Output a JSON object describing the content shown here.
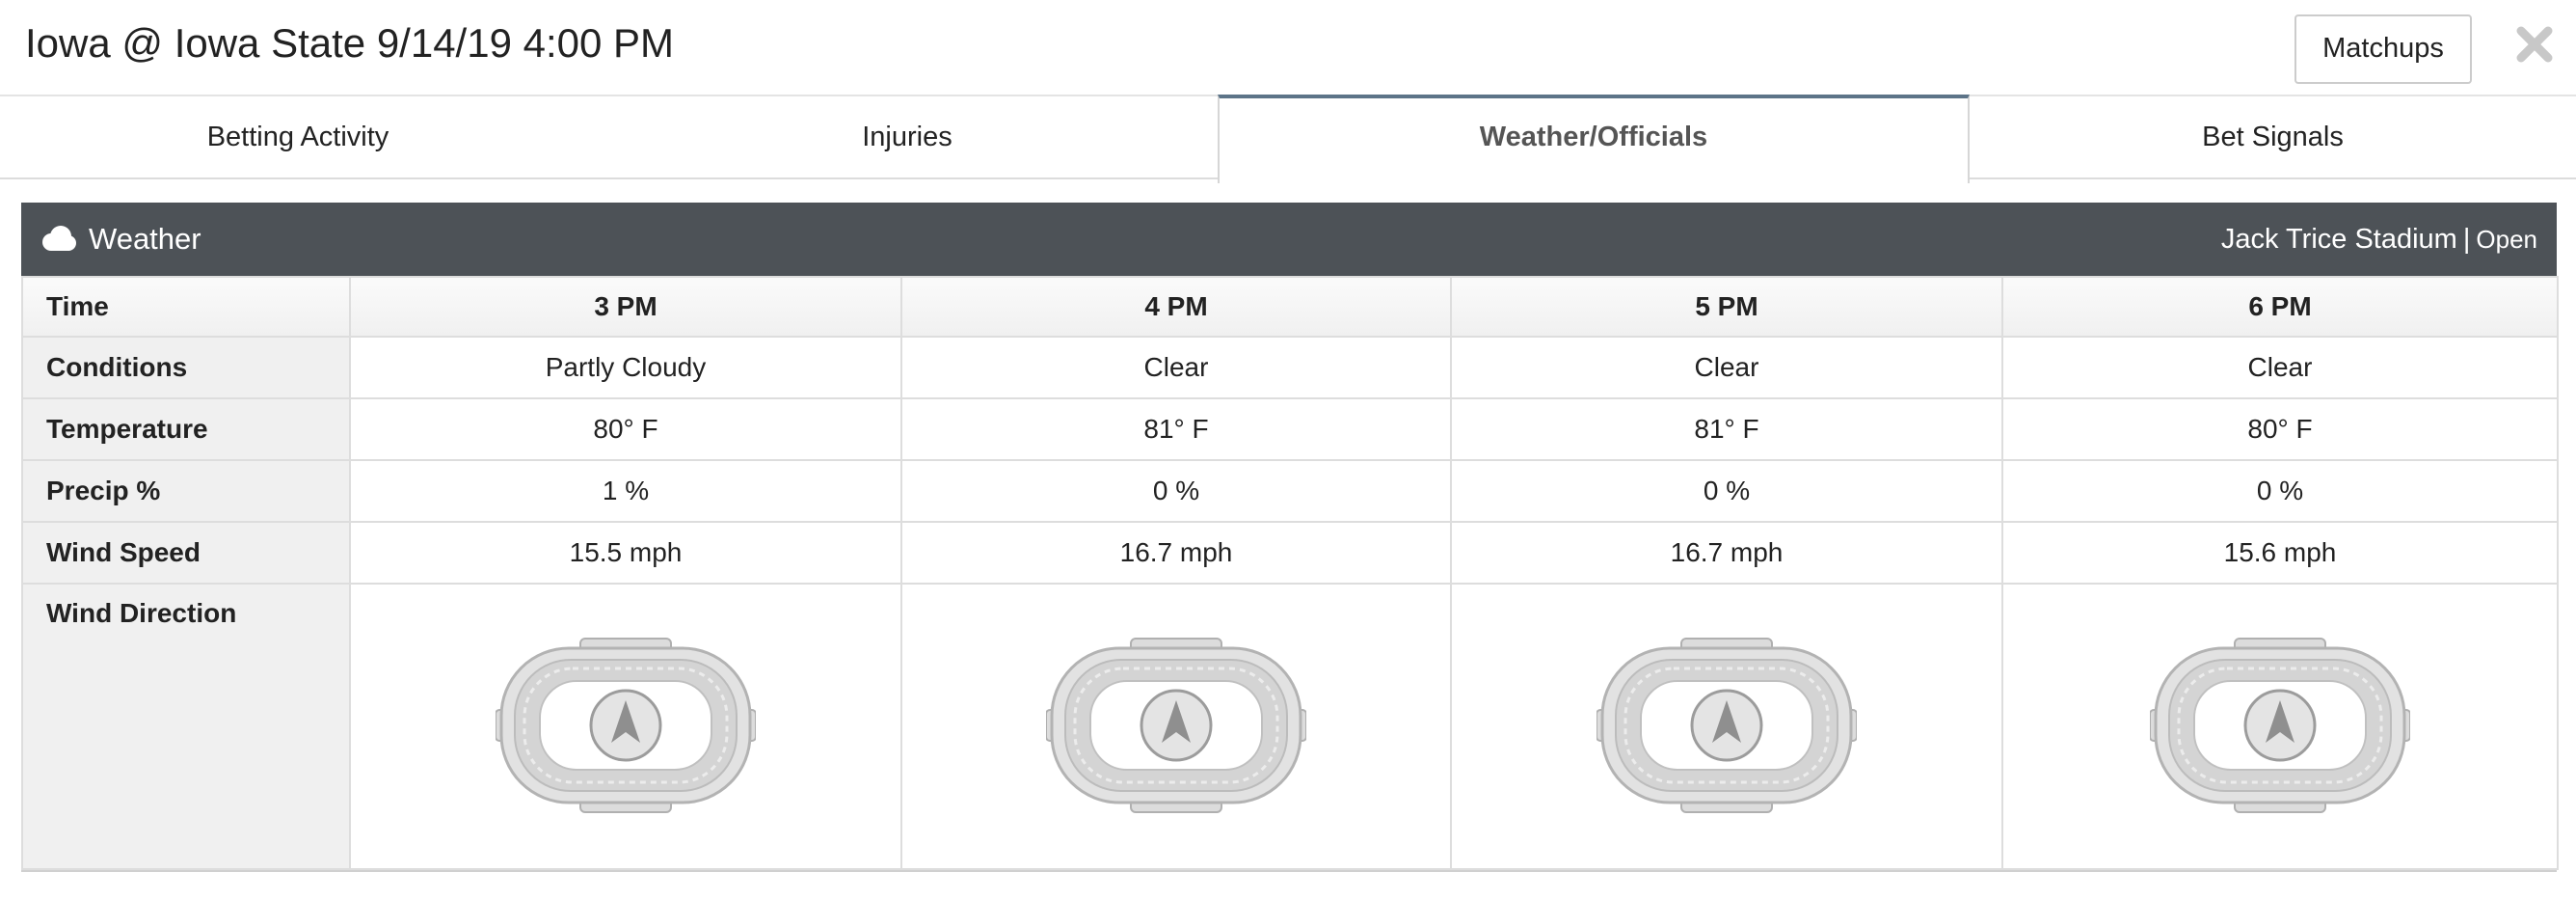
{
  "header": {
    "title": "Iowa @ Iowa State 9/14/19 4:00 PM",
    "matchups_label": "Matchups",
    "close_icon": "close-icon"
  },
  "tabs": [
    {
      "label": "Betting Activity",
      "active": false
    },
    {
      "label": "Injuries",
      "active": false
    },
    {
      "label": "Weather/Officials",
      "active": true
    },
    {
      "label": "Bet Signals",
      "active": false
    }
  ],
  "weather": {
    "icon": "cloud-icon",
    "title": "Weather",
    "stadium": "Jack Trice Stadium",
    "separator": "|",
    "roof": "Open",
    "rows": {
      "time_label": "Time",
      "conditions_label": "Conditions",
      "temperature_label": "Temperature",
      "precip_label": "Precip %",
      "wind_speed_label": "Wind Speed",
      "wind_direction_label": "Wind Direction"
    },
    "hours": [
      {
        "time": "3 PM",
        "conditions": "Partly Cloudy",
        "temperature": "80° F",
        "precip": "1 %",
        "wind_speed": "15.5 mph",
        "wind_icon": "stadium-wind-compass-icon"
      },
      {
        "time": "4 PM",
        "conditions": "Clear",
        "temperature": "81° F",
        "precip": "0 %",
        "wind_speed": "16.7 mph",
        "wind_icon": "stadium-wind-compass-icon"
      },
      {
        "time": "5 PM",
        "conditions": "Clear",
        "temperature": "81° F",
        "precip": "0 %",
        "wind_speed": "16.7 mph",
        "wind_icon": "stadium-wind-compass-icon"
      },
      {
        "time": "6 PM",
        "conditions": "Clear",
        "temperature": "80° F",
        "precip": "0 %",
        "wind_speed": "15.6 mph",
        "wind_icon": "stadium-wind-compass-icon"
      }
    ]
  },
  "colors": {
    "panel_header": "#4d5257",
    "active_tab_accent": "#5d7488",
    "label_column": "#f0f0f0",
    "grid_line": "#dddddd"
  }
}
